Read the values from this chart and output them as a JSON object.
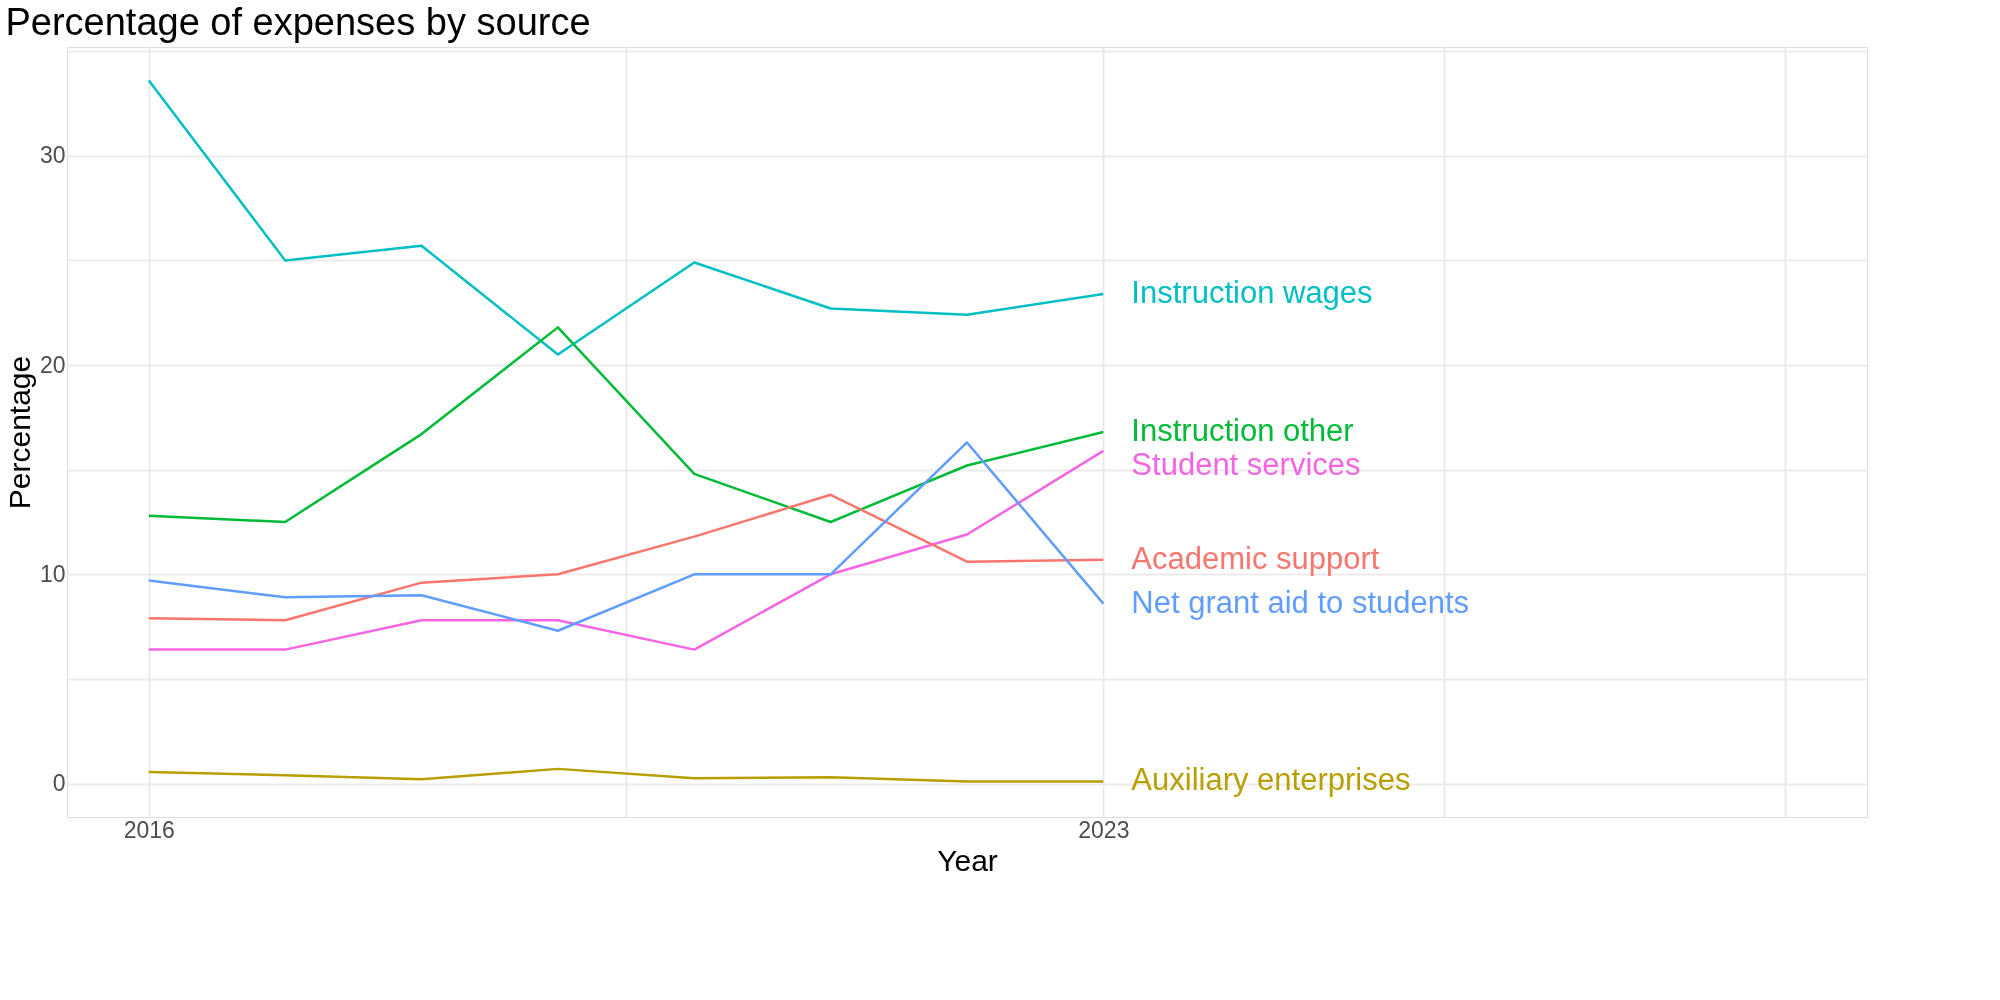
{
  "chart_data": {
    "type": "line",
    "title": "Percentage of expenses by source",
    "xlabel": "Year",
    "ylabel": "Percentage",
    "x": [
      2016,
      2017,
      2018,
      2019,
      2020,
      2021,
      2022,
      2023
    ],
    "xlim": [
      2015.4,
      2028.6
    ],
    "xticks": [
      2016,
      {
        "value": 2019.5,
        "label": null
      },
      2023,
      {
        "value": 2025.5,
        "label": null
      },
      {
        "value": 2028,
        "label": null
      }
    ],
    "ylim": [
      -1.6,
      35.2
    ],
    "yticks": [
      0,
      {
        "value": 5,
        "label": null
      },
      10,
      {
        "value": 15,
        "label": null
      },
      20,
      {
        "value": 25,
        "label": null
      },
      30,
      {
        "value": 35,
        "label": null
      }
    ],
    "grid": true,
    "marker": "none",
    "line_style": "solid",
    "series": [
      {
        "name": "Instruction wages",
        "color": "#00bfc4",
        "values": [
          33.6,
          25.0,
          25.7,
          20.5,
          24.9,
          22.7,
          22.4,
          23.4
        ]
      },
      {
        "name": "Instruction other",
        "color": "#00ba38",
        "values": [
          12.8,
          12.5,
          16.7,
          21.8,
          14.8,
          12.5,
          15.2,
          16.8
        ]
      },
      {
        "name": "Student services",
        "color": "#f564e3",
        "values": [
          6.4,
          6.4,
          7.8,
          7.8,
          6.4,
          10.0,
          11.9,
          15.9
        ]
      },
      {
        "name": "Academic support",
        "color": "#f8766d",
        "values": [
          7.9,
          7.8,
          9.6,
          10.0,
          11.8,
          13.8,
          10.6,
          10.7
        ]
      },
      {
        "name": "Net grant aid to students",
        "color": "#619cff",
        "values": [
          9.7,
          8.9,
          9.0,
          7.3,
          10.0,
          10.0,
          16.3,
          8.6
        ]
      },
      {
        "name": "Auxiliary enterprises",
        "color": "#b79f00",
        "values": [
          0.55,
          0.4,
          0.2,
          0.7,
          0.25,
          0.3,
          0.1,
          0.1
        ]
      }
    ]
  }
}
